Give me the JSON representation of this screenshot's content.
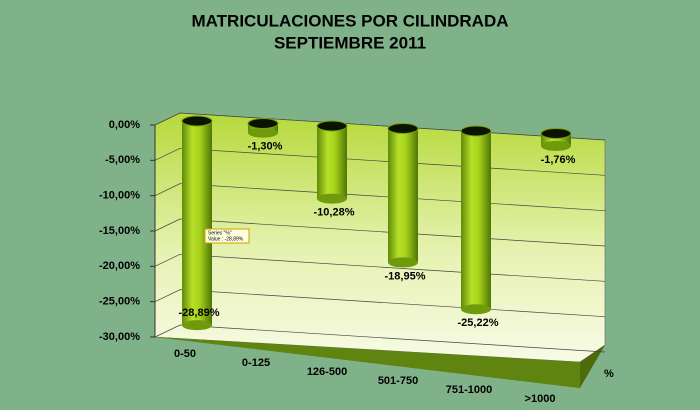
{
  "chart_data": {
    "type": "bar",
    "title": "MATRICULACIONES POR CILINDRADA",
    "subtitle": "SEPTIEMBRE 2011",
    "categories": [
      "0-50",
      "0-125",
      "126-500",
      "501-750",
      "751-1000",
      ">1000"
    ],
    "values": [
      -28.89,
      -1.3,
      -10.28,
      -18.95,
      -25.22,
      -1.76
    ],
    "value_labels": [
      "-28,89%",
      "-1,30%",
      "-10,28%",
      "-18,95%",
      "-25,22%",
      "-1,76%"
    ],
    "color": "#9acd1e",
    "ylim": [
      -30,
      0
    ],
    "yticks": [
      {
        "value": 0,
        "label": "0,00%"
      },
      {
        "value": -5,
        "label": "-5,00%"
      },
      {
        "value": -10,
        "label": "-10,00%"
      },
      {
        "value": -15,
        "label": "-15,00%"
      },
      {
        "value": -20,
        "label": "-20,00%"
      },
      {
        "value": -25,
        "label": "-25,00%"
      },
      {
        "value": -30,
        "label": "-30,00%"
      }
    ],
    "grid": true,
    "xlabel": "%",
    "tooltip": {
      "series": "Series \"%\"",
      "value": "Value : -28,89%"
    }
  }
}
